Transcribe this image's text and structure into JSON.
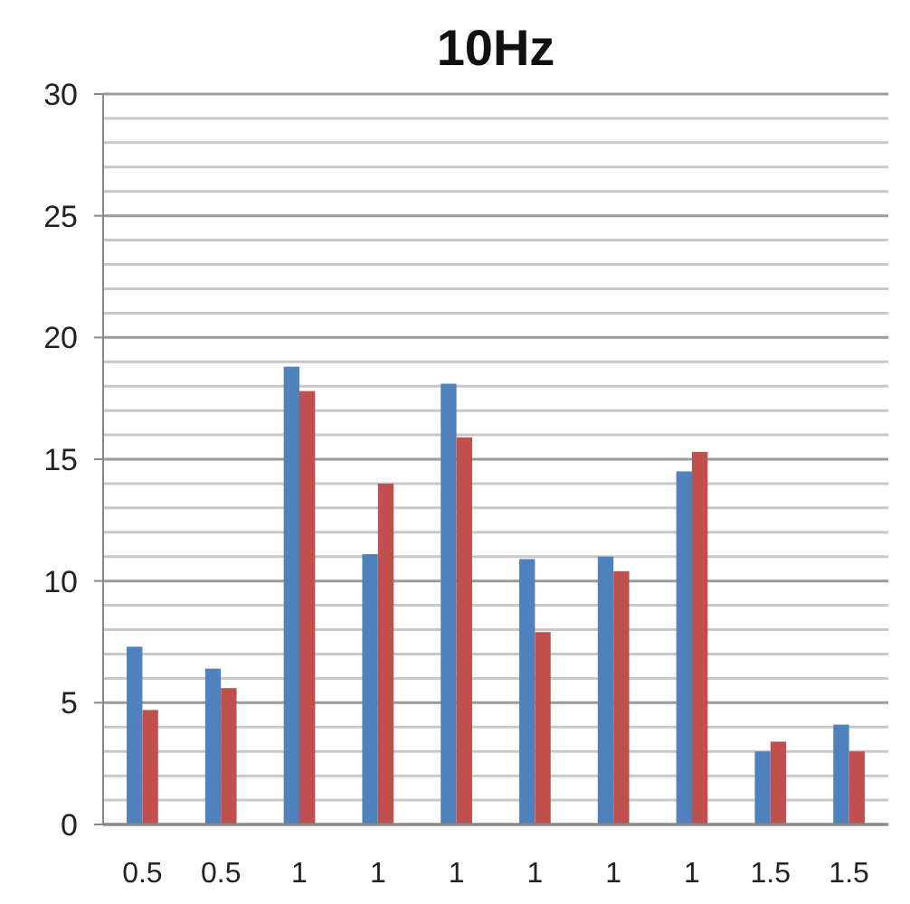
{
  "chart_data": {
    "type": "bar",
    "title": "10Hz",
    "categories": [
      "0.5",
      "0.5",
      "1",
      "1",
      "1",
      "1",
      "1",
      "1",
      "1.5",
      "1.5"
    ],
    "series": [
      {
        "color": "#4f81bd",
        "values": [
          7.3,
          6.4,
          18.8,
          11.1,
          18.1,
          10.9,
          11.0,
          14.5,
          3.0,
          4.1
        ]
      },
      {
        "color": "#c0504d",
        "values": [
          4.7,
          5.6,
          17.8,
          14.0,
          15.9,
          7.9,
          10.4,
          15.3,
          3.4,
          3.0
        ]
      }
    ],
    "ylim": [
      0,
      30
    ],
    "yticks": [
      0,
      {
        "value": 1,
        "label": null
      },
      {
        "value": 2,
        "label": null
      },
      {
        "value": 3,
        "label": null
      },
      {
        "value": 4,
        "label": null
      },
      5,
      {
        "value": 6,
        "label": null
      },
      {
        "value": 7,
        "label": null
      },
      {
        "value": 8,
        "label": null
      },
      {
        "value": 9,
        "label": null
      },
      10,
      {
        "value": 11,
        "label": null
      },
      {
        "value": 12,
        "label": null
      },
      {
        "value": 13,
        "label": null
      },
      {
        "value": 14,
        "label": null
      },
      15,
      {
        "value": 16,
        "label": null
      },
      {
        "value": 17,
        "label": null
      },
      {
        "value": 18,
        "label": null
      },
      {
        "value": 19,
        "label": null
      },
      20,
      {
        "value": 21,
        "label": null
      },
      {
        "value": 22,
        "label": null
      },
      {
        "value": 23,
        "label": null
      },
      {
        "value": 24,
        "label": null
      },
      25,
      {
        "value": 26,
        "label": null
      },
      {
        "value": 27,
        "label": null
      },
      {
        "value": 28,
        "label": null
      },
      {
        "value": 29,
        "label": null
      },
      30
    ],
    "grid": "y"
  }
}
